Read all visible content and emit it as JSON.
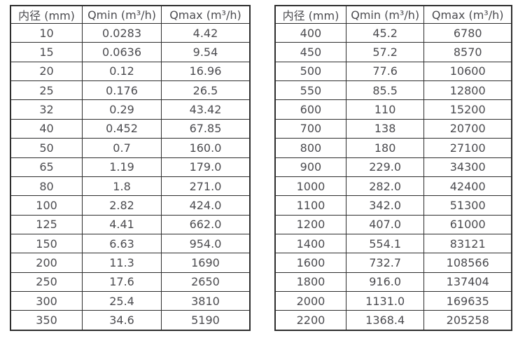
{
  "page": {
    "background": "#ffffff",
    "border_color": "#2e2e2e",
    "text_color": "#4b4b4f"
  },
  "tables": [
    {
      "name": "flow-spec-small-diameters",
      "headers": [
        "内径 (mm)",
        "Qmin (m³/h)",
        "Qmax (m³/h)"
      ],
      "rows": [
        [
          "10",
          "0.0283",
          "4.42"
        ],
        [
          "15",
          "0.0636",
          "9.54"
        ],
        [
          "20",
          "0.12",
          "16.96"
        ],
        [
          "25",
          "0.176",
          "26.5"
        ],
        [
          "32",
          "0.29",
          "43.42"
        ],
        [
          "40",
          "0.452",
          "67.85"
        ],
        [
          "50",
          "0.7",
          "160.0"
        ],
        [
          "65",
          "1.19",
          "179.0"
        ],
        [
          "80",
          "1.8",
          "271.0"
        ],
        [
          "100",
          "2.82",
          "424.0"
        ],
        [
          "125",
          "4.41",
          "662.0"
        ],
        [
          "150",
          "6.63",
          "954.0"
        ],
        [
          "200",
          "11.3",
          "1690"
        ],
        [
          "250",
          "17.6",
          "2650"
        ],
        [
          "300",
          "25.4",
          "3810"
        ],
        [
          "350",
          "34.6",
          "5190"
        ]
      ]
    },
    {
      "name": "flow-spec-large-diameters",
      "headers": [
        "内径 (mm)",
        "Qmin (m³/h)",
        "Qmax (m³/h)"
      ],
      "rows": [
        [
          "400",
          "45.2",
          "6780"
        ],
        [
          "450",
          "57.2",
          "8570"
        ],
        [
          "500",
          "77.6",
          "10600"
        ],
        [
          "550",
          "85.5",
          "12800"
        ],
        [
          "600",
          "110",
          "15200"
        ],
        [
          "700",
          "138",
          "20700"
        ],
        [
          "800",
          "180",
          "27100"
        ],
        [
          "900",
          "229.0",
          "34300"
        ],
        [
          "1000",
          "282.0",
          "42400"
        ],
        [
          "1100",
          "342.0",
          "51300"
        ],
        [
          "1200",
          "407.0",
          "61000"
        ],
        [
          "1400",
          "554.1",
          "83121"
        ],
        [
          "1600",
          "732.7",
          "108566"
        ],
        [
          "1800",
          "916.0",
          "137404"
        ],
        [
          "2000",
          "1131.0",
          "169635"
        ],
        [
          "2200",
          "1368.4",
          "205258"
        ]
      ]
    }
  ]
}
